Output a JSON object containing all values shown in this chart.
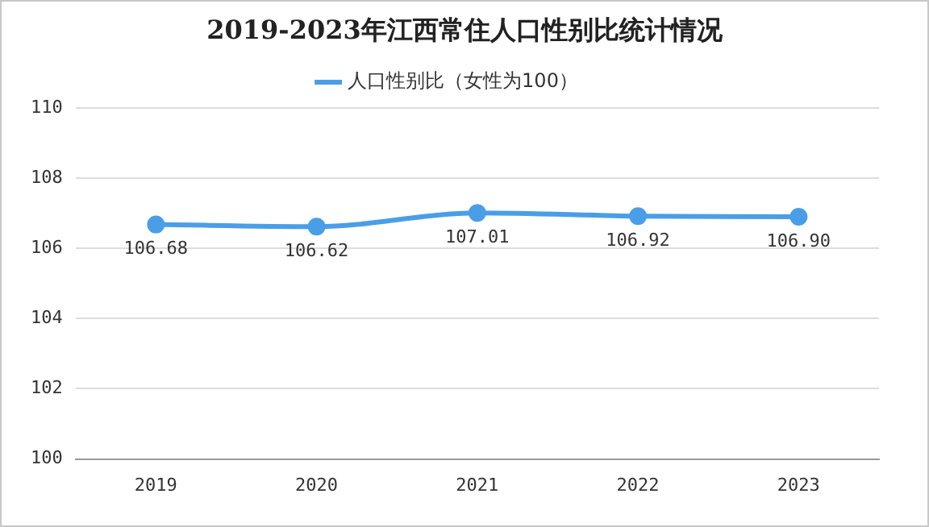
{
  "chart_data": {
    "type": "line",
    "title": "2019-2023年江西常住人口性别比统计情况",
    "categories": [
      "2019",
      "2020",
      "2021",
      "2022",
      "2023"
    ],
    "series": [
      {
        "name": "人口性别比（女性为100）",
        "color": "#4a9ee8",
        "values": [
          106.68,
          106.62,
          107.01,
          106.92,
          106.9
        ],
        "value_labels": [
          "106.68",
          "106.62",
          "107.01",
          "106.92",
          "106.90"
        ]
      }
    ],
    "ylim": [
      100,
      110
    ],
    "yticks": [
      100,
      102,
      104,
      106,
      108,
      110
    ],
    "grid": "y",
    "legend": "top",
    "marker": "circle",
    "line_style": "solid"
  }
}
